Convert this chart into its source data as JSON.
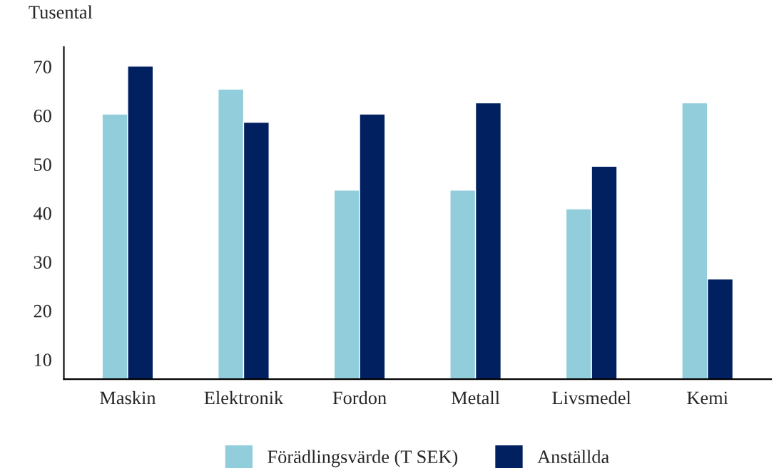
{
  "chart_data": {
    "type": "bar",
    "ylabel": "Tusental",
    "categories": [
      "Maskin",
      "Elektronik",
      "Fordon",
      "Metall",
      "Livsmedel",
      "Kemi"
    ],
    "series": [
      {
        "name": "Förädlingsvärde (T SEK)",
        "color": "#92cddc",
        "values": [
          60.3,
          65.4,
          44.7,
          44.7,
          40.9,
          62.6
        ]
      },
      {
        "name": "Anställda",
        "color": "#002060",
        "values": [
          70.1,
          58.6,
          60.3,
          62.6,
          49.6,
          26.5
        ]
      }
    ],
    "ylim": [
      6,
      74
    ],
    "yticks": [
      10,
      20,
      30,
      40,
      50,
      60,
      70
    ],
    "grid": false,
    "legend": "bottom"
  }
}
